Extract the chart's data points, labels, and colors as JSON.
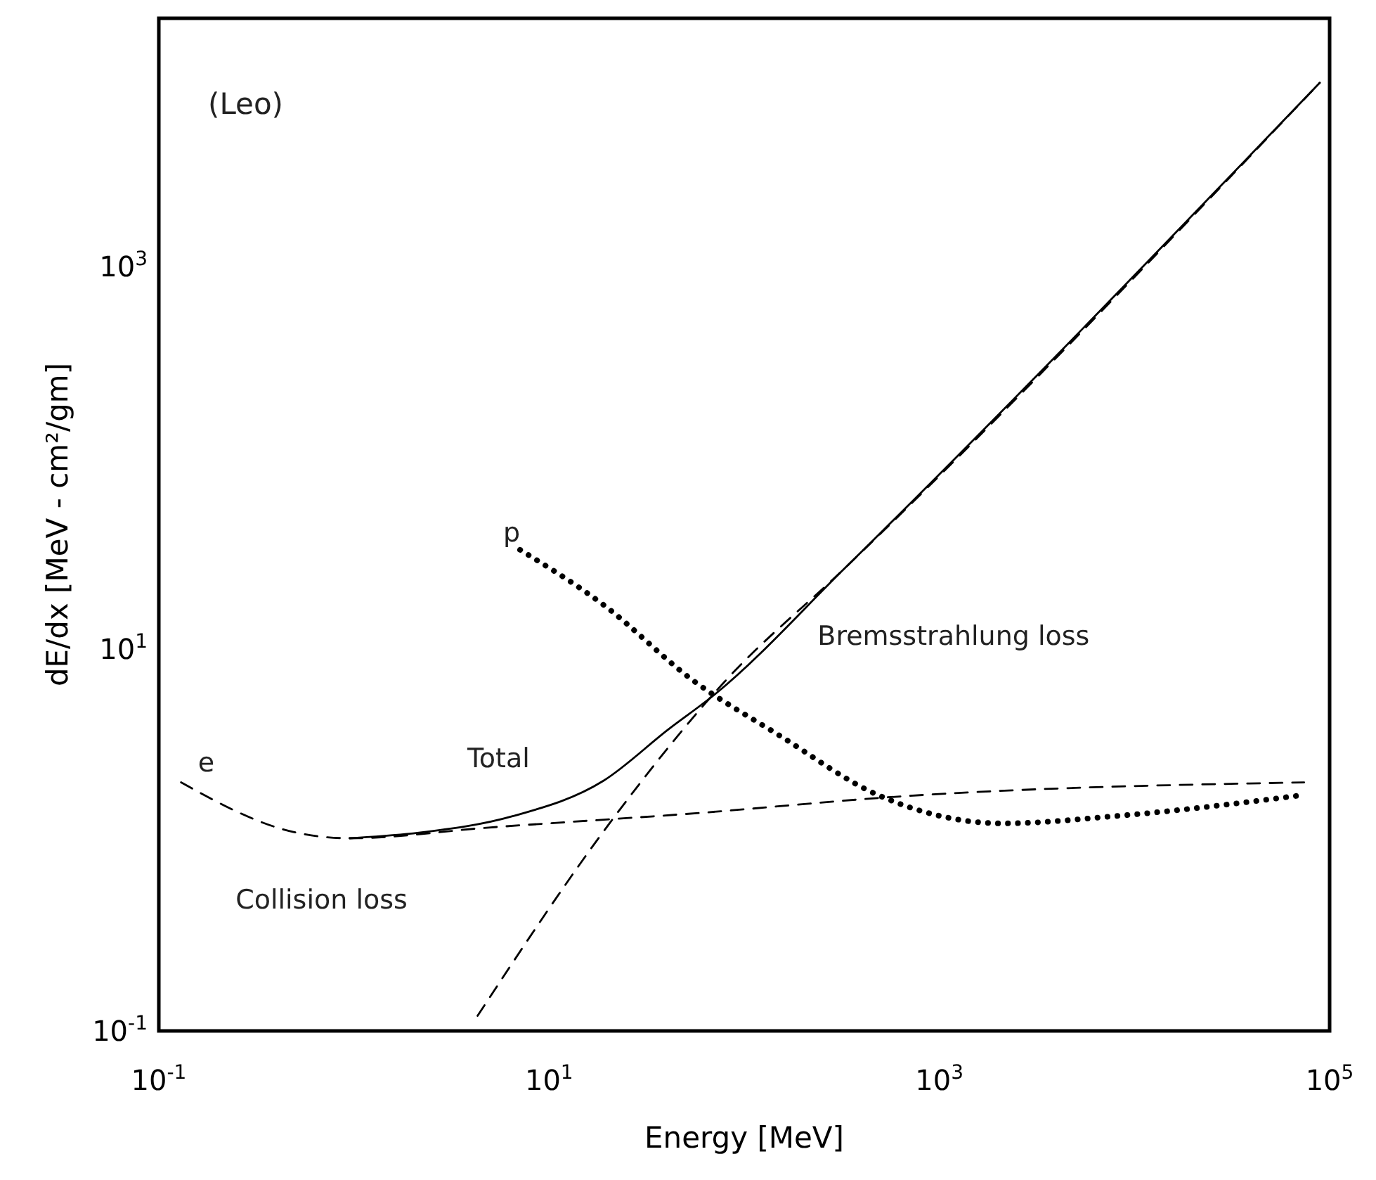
{
  "chart_data": {
    "type": "line",
    "xlabel": "Energy [MeV]",
    "ylabel": "dE/dx [MeV - cm²/gm]",
    "log": "xy",
    "xlim": [
      0.1,
      100000
    ],
    "ylim": [
      0.1,
      20000
    ],
    "xticks": [
      {
        "value": 0.1,
        "label": "10$^{-1}$"
      },
      {
        "value": 10,
        "label": "10$^{1}$"
      },
      {
        "value": 1000,
        "label": "10$^{3}$"
      },
      {
        "value": 100000,
        "label": "10$^{5}$"
      }
    ],
    "yticks": [
      {
        "value": 0.1,
        "label": "10$^{-1}$"
      },
      {
        "value": 10,
        "label": "10$^{1}$"
      },
      {
        "value": 1000,
        "label": "10$^{3}$"
      }
    ],
    "annotations": [
      "(Leo)",
      {
        "text": "e",
        "x": 0.13,
        "y": 2.0
      }
    ],
    "series": [
      {
        "name": "Total",
        "color": "#000000",
        "line_style": "solid",
        "x": [
          0.95,
          2.15,
          6.5,
          19,
          41,
          71,
          331,
          89000
        ],
        "values": [
          1.02,
          1.09,
          1.33,
          2.04,
          3.8,
          5.8,
          26.7,
          9190
        ]
      },
      {
        "name": "Collision loss",
        "color": "#000000",
        "line_style": "dashed",
        "x": [
          0.13,
          0.49,
          0.95,
          4.9,
          57,
          638,
          74000
        ],
        "values": [
          2.0,
          1.1,
          1.02,
          1.16,
          1.38,
          1.69,
          2.0
        ]
      },
      {
        "name": "Bremsstrahlung loss",
        "color": "#000000",
        "line_style": "dashed",
        "x": [
          4.3,
          21,
          79,
          331,
          89000
        ],
        "values": [
          0.12,
          1.27,
          6.7,
          26.7,
          9190
        ]
      },
      {
        "name": "p",
        "color": "#000000",
        "line_style": "dotted",
        "x": [
          7.1,
          19,
          54,
          153,
          483,
          2120,
          7850,
          74000
        ],
        "values": [
          33,
          17,
          6.9,
          3.5,
          1.72,
          1.22,
          1.33,
          1.72
        ]
      }
    ]
  }
}
